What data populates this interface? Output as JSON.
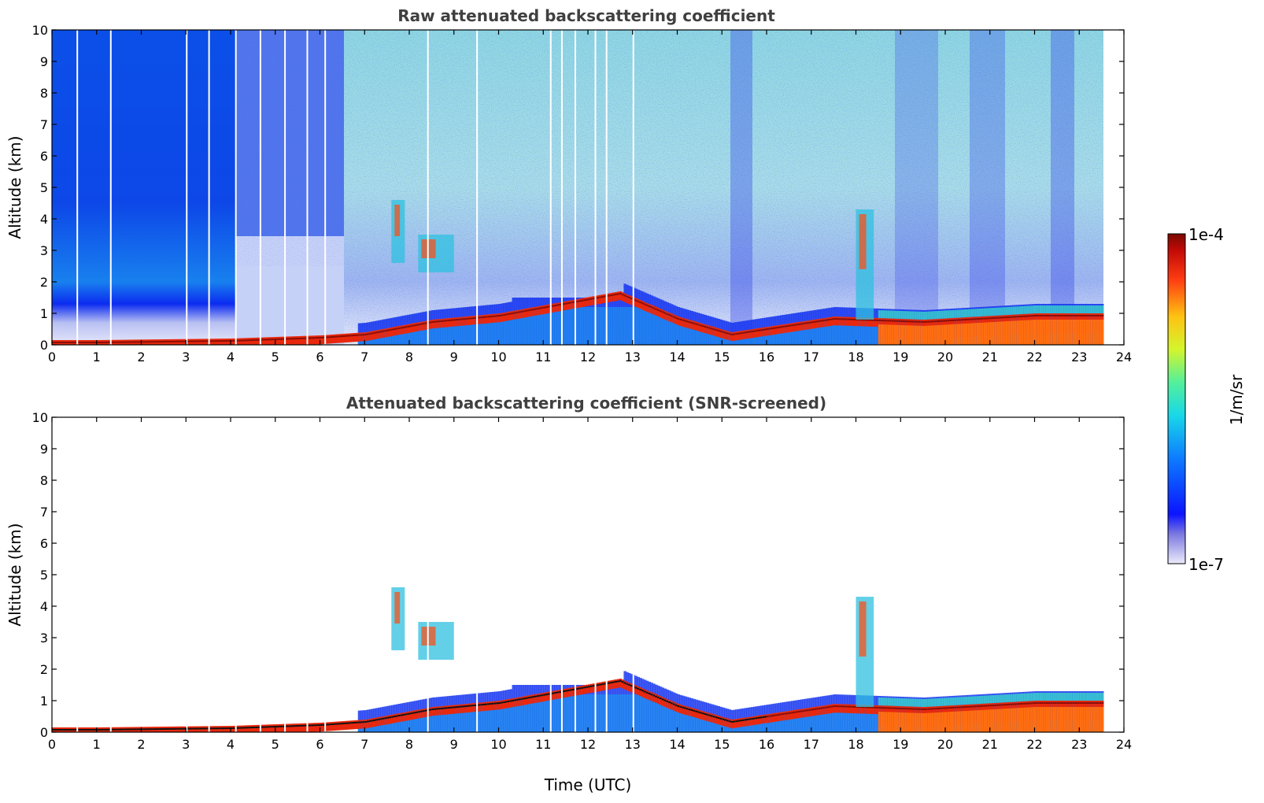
{
  "chart_data": [
    {
      "type": "heatmap",
      "title": "Raw attenuated backscattering coefficient",
      "xlabel": "",
      "ylabel": "Altitude (km)",
      "xlim": [
        0,
        24
      ],
      "ylim": [
        0,
        10
      ],
      "xticks": [
        "0",
        "1",
        "2",
        "3",
        "4",
        "5",
        "6",
        "7",
        "8",
        "9",
        "10",
        "11",
        "12",
        "13",
        "14",
        "15",
        "16",
        "17",
        "18",
        "19",
        "20",
        "21",
        "22",
        "23",
        "24"
      ],
      "yticks": [
        "0",
        "1",
        "2",
        "3",
        "4",
        "5",
        "6",
        "7",
        "8",
        "9",
        "10"
      ],
      "data_time_range": [
        0,
        23.55
      ],
      "features": [
        {
          "t": 1.0,
          "bl_top_km": 0.15
        },
        {
          "t": 4.0,
          "bl_top_km": 0.2
        },
        {
          "t": 6.0,
          "bl_top_km": 0.3
        },
        {
          "t": 7.0,
          "bl_top_km": 0.4
        },
        {
          "t": 8.5,
          "bl_top_km": 0.8
        },
        {
          "t": 10.0,
          "bl_top_km": 1.0
        },
        {
          "t": 12.7,
          "bl_top_km": 1.7
        },
        {
          "t": 14.0,
          "bl_top_km": 0.9
        },
        {
          "t": 15.2,
          "bl_top_km": 0.4
        },
        {
          "t": 17.5,
          "bl_top_km": 0.9
        },
        {
          "t": 19.5,
          "bl_top_km": 0.8
        },
        {
          "t": 22.0,
          "bl_top_km": 1.0
        }
      ],
      "elevated_layers": [
        {
          "t_start": 7.6,
          "t_end": 7.9,
          "alt_km": [
            2.6,
            4.6
          ]
        },
        {
          "t_start": 8.2,
          "t_end": 9.0,
          "alt_km": [
            2.3,
            3.5
          ]
        },
        {
          "t_start": 18.0,
          "t_end": 18.4,
          "alt_km": [
            0.8,
            4.3
          ]
        }
      ]
    },
    {
      "type": "heatmap",
      "title": "Attenuated backscattering coefficient (SNR-screened)",
      "xlabel": "Time (UTC)",
      "ylabel": "Altitude (km)",
      "xlim": [
        0,
        24
      ],
      "ylim": [
        0,
        10
      ],
      "xticks": [
        "0",
        "1",
        "2",
        "3",
        "4",
        "5",
        "6",
        "7",
        "8",
        "9",
        "10",
        "11",
        "12",
        "13",
        "14",
        "15",
        "16",
        "17",
        "18",
        "19",
        "20",
        "21",
        "22",
        "23",
        "24"
      ],
      "yticks": [
        "0",
        "1",
        "2",
        "3",
        "4",
        "5",
        "6",
        "7",
        "8",
        "9",
        "10"
      ],
      "data_time_range": [
        0,
        23.55
      ]
    }
  ],
  "colorbar": {
    "label": "1/m/sr",
    "max_label": "1e-4",
    "min_label": "1e-7",
    "range": [
      1e-07,
      0.0001
    ],
    "scale": "log",
    "colormap": "jet"
  }
}
